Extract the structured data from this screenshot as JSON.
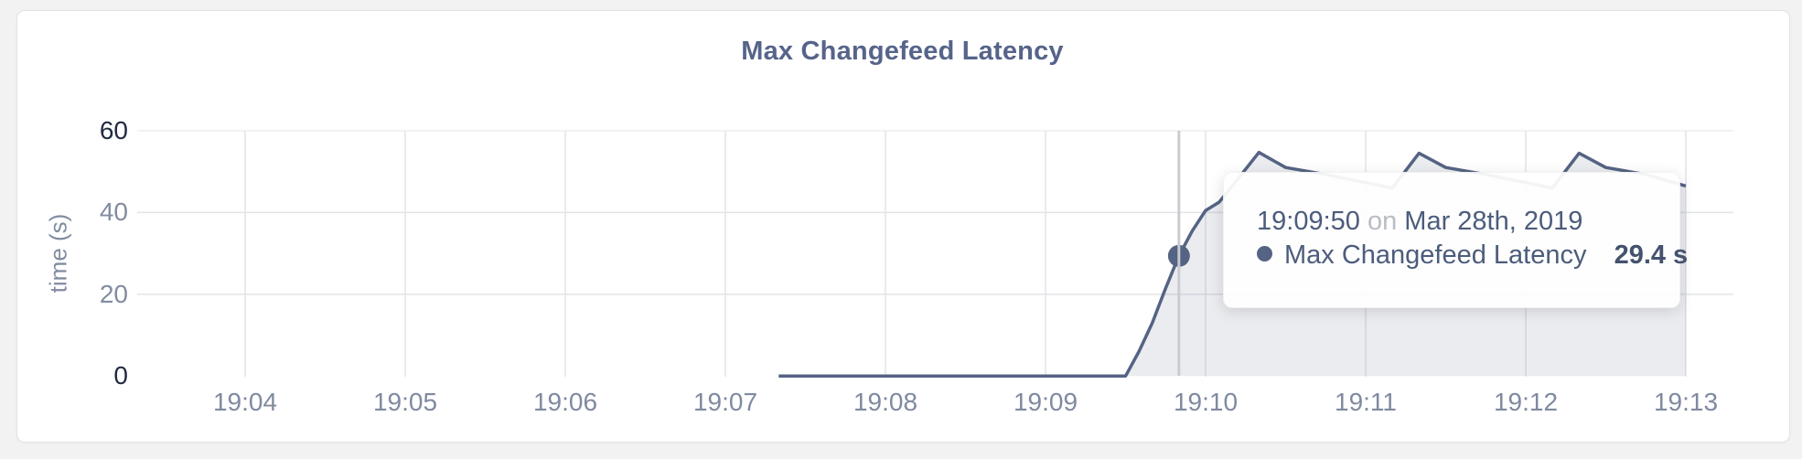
{
  "card": {
    "title": "Max Changefeed Latency"
  },
  "tooltip": {
    "time": "19:09:50",
    "on_word": "on",
    "date": "Mar 28th, 2019",
    "series_label": "Max Changefeed Latency",
    "value": "29.4 s",
    "bullet_icon": "series-bullet-icon"
  },
  "chart_data": {
    "type": "area",
    "title": "Max Changefeed Latency",
    "xlabel": "",
    "ylabel": "time (s)",
    "ylim": [
      0,
      60
    ],
    "y_ticks": [
      0,
      20,
      40,
      60
    ],
    "x_ticks": [
      "19:04",
      "19:05",
      "19:06",
      "19:07",
      "19:08",
      "19:09",
      "19:10",
      "19:11",
      "19:12",
      "19:13"
    ],
    "grid": true,
    "legend_position": "none",
    "series": [
      {
        "name": "Max Changefeed Latency",
        "unit": "s",
        "color": "#556384",
        "points": [
          [
            "19:07:20",
            0
          ],
          [
            "19:09:30",
            0
          ],
          [
            "19:09:35",
            6
          ],
          [
            "19:09:40",
            13
          ],
          [
            "19:09:45",
            21.5
          ],
          [
            "19:09:50",
            29.4
          ],
          [
            "19:09:55",
            35.5
          ],
          [
            "19:10:00",
            40.5
          ],
          [
            "19:10:05",
            42.5
          ],
          [
            "19:10:10",
            46.5
          ],
          [
            "19:10:20",
            54.7
          ],
          [
            "19:10:30",
            51
          ],
          [
            "19:10:45",
            49.3
          ],
          [
            "19:11:10",
            46
          ],
          [
            "19:11:20",
            54.5
          ],
          [
            "19:11:30",
            51
          ],
          [
            "19:11:45",
            49.3
          ],
          [
            "19:12:10",
            46
          ],
          [
            "19:12:20",
            54.5
          ],
          [
            "19:12:30",
            51
          ],
          [
            "19:12:45",
            49.3
          ],
          [
            "19:13:00",
            46.5
          ]
        ]
      }
    ],
    "hover": {
      "time": "19:09:50",
      "value": 29.4
    }
  },
  "colors": {
    "page_bg": "#f2f2f3",
    "title_text": "#56648a",
    "accent_line": "#556384",
    "area_fill": "rgba(85,99,132,0.12)",
    "grid": "#e3e4e8",
    "hover_guideline": "#c9cbd0",
    "tick_strong": "#202a40",
    "tick_muted": "#828ca0",
    "x_tick": "#7f8aa0",
    "tooltip_text": "#4c5c7c",
    "tooltip_muted": "#b9bdc4"
  }
}
